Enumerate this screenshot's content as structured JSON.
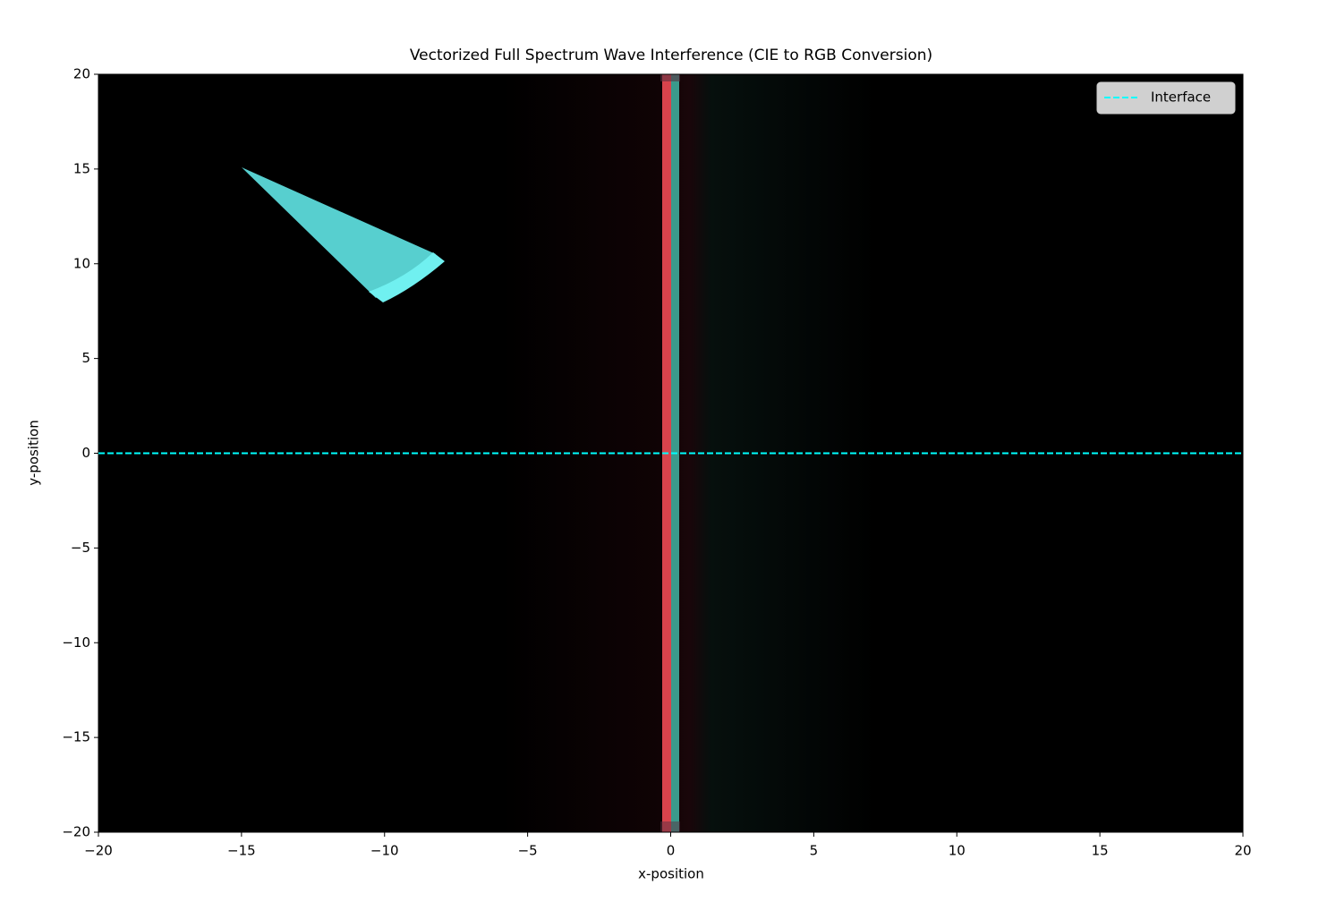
{
  "chart_data": {
    "type": "line",
    "title": "Vectorized Full Spectrum Wave Interference (CIE to RGB Conversion)",
    "x_label": "x-position",
    "y_label": "y-position",
    "x": [
      -20,
      20
    ],
    "series": [
      {
        "name": "Interface",
        "color": "#00ffff",
        "values": [
          0,
          0
        ],
        "dashed": true
      }
    ],
    "xlim": [
      -20,
      20
    ],
    "ylim": [
      -20,
      20
    ],
    "xticks": [
      {
        "value": -20,
        "label": "−20"
      },
      {
        "value": -15,
        "label": "−15"
      },
      {
        "value": -10,
        "label": "−10"
      },
      {
        "value": -5,
        "label": "−5"
      },
      0,
      5,
      10,
      15,
      20
    ],
    "yticks": [
      {
        "value": -20,
        "label": "−20"
      },
      {
        "value": -15,
        "label": "−15"
      },
      {
        "value": -10,
        "label": "−10"
      },
      {
        "value": -5,
        "label": "−5"
      },
      0,
      5,
      10,
      15,
      20
    ],
    "legend": "upper right"
  }
}
